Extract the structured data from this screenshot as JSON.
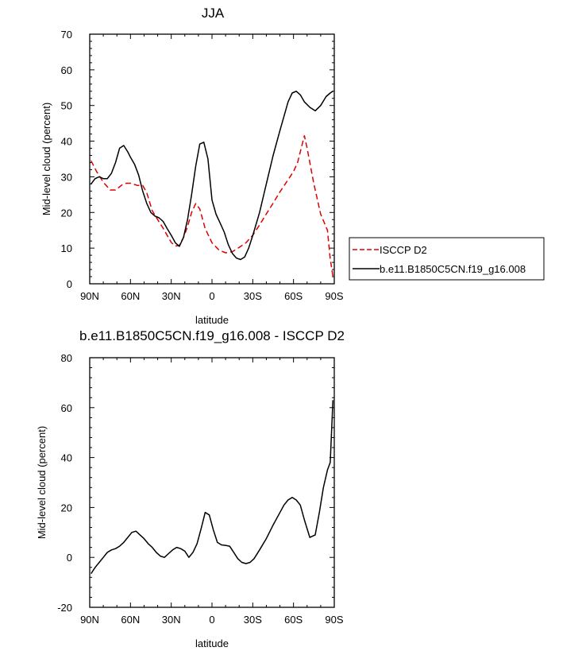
{
  "chart_data": [
    {
      "type": "line",
      "title": "JJA",
      "xlabel": "latitude",
      "ylabel": "Mid-level cloud (percent)",
      "xlim": [
        90,
        -90
      ],
      "ylim": [
        0,
        70
      ],
      "x_ticks": [
        90,
        60,
        30,
        0,
        -30,
        -60,
        -90
      ],
      "x_tick_labels": [
        "90N",
        "60N",
        "30N",
        "0",
        "30S",
        "60S",
        "90S"
      ],
      "y_ticks": [
        0,
        10,
        20,
        30,
        40,
        50,
        60,
        70
      ],
      "y_tick_labels": [
        "0",
        "10",
        "20",
        "30",
        "40",
        "50",
        "60",
        "70"
      ],
      "legend_position": "right",
      "series": [
        {
          "name": "ISCCP D2",
          "color": "#dd0000",
          "style": "dashed",
          "x": [
            89,
            85,
            80,
            75,
            71,
            66,
            63,
            60,
            55,
            51,
            48,
            44,
            40,
            36,
            33,
            30,
            27,
            24,
            21,
            18,
            15,
            12,
            9,
            5,
            0,
            -5,
            -10,
            -15,
            -20,
            -25,
            -30,
            -35,
            -40,
            -45,
            -50,
            -55,
            -60,
            -63,
            -66,
            -68,
            -70,
            -75,
            -80,
            -85,
            -87,
            -89
          ],
          "y": [
            34.5,
            31.5,
            28.5,
            26.3,
            26.3,
            27.8,
            28.2,
            28.2,
            27.6,
            27.6,
            25.5,
            20.5,
            18,
            15.6,
            13.6,
            11.6,
            10.6,
            10.8,
            13,
            16,
            20,
            22.5,
            21,
            15.5,
            11.5,
            9.5,
            8.7,
            9,
            10.2,
            11.5,
            13.6,
            16.5,
            19.6,
            22.6,
            25.8,
            28.6,
            31.5,
            34,
            38.5,
            41.5,
            38,
            28,
            19.5,
            15,
            7,
            2
          ]
        },
        {
          "name": "b.e11.B1850C5CN.f19_g16.008",
          "color": "#000000",
          "style": "solid",
          "x": [
            89,
            86,
            83,
            80,
            77,
            74,
            71,
            68,
            65,
            62,
            60,
            57,
            54,
            51,
            48,
            45,
            42,
            39,
            36,
            33,
            30,
            27,
            24,
            21,
            18,
            15,
            12,
            9,
            6,
            3,
            0,
            -3,
            -6,
            -9,
            -12,
            -15,
            -18,
            -21,
            -24,
            -27,
            -30,
            -35,
            -40,
            -45,
            -50,
            -53,
            -56,
            -59,
            -62,
            -65,
            -68,
            -72,
            -76,
            -80,
            -84,
            -87,
            -89
          ],
          "y": [
            28,
            29.5,
            30,
            29.5,
            29.5,
            31,
            34,
            38,
            38.8,
            37,
            35.5,
            33.5,
            30.5,
            26,
            22.5,
            20,
            19,
            18.5,
            17.5,
            15.5,
            13.6,
            11.5,
            10.5,
            13,
            18,
            25,
            33,
            39.2,
            39.7,
            35,
            23.5,
            19.5,
            17,
            14.5,
            11,
            8.5,
            7.2,
            6.8,
            7.5,
            10,
            13.5,
            20,
            28,
            36,
            43,
            47,
            51,
            53.5,
            54,
            53,
            51,
            49.5,
            48.5,
            50,
            52.5,
            53.5,
            54
          ]
        }
      ]
    },
    {
      "type": "line",
      "title": "b.e11.B1850C5CN.f19_g16.008 - ISCCP D2",
      "xlabel": "latitude",
      "ylabel": "Mid-level cloud (percent)",
      "xlim": [
        90,
        -90
      ],
      "ylim": [
        -20,
        80
      ],
      "x_ticks": [
        90,
        60,
        30,
        0,
        -30,
        -60,
        -90
      ],
      "x_tick_labels": [
        "90N",
        "60N",
        "30N",
        "0",
        "30S",
        "60S",
        "90S"
      ],
      "y_ticks": [
        -20,
        0,
        20,
        40,
        60,
        80
      ],
      "y_tick_labels": [
        "-20",
        "0",
        "20",
        "40",
        "60",
        "80"
      ],
      "series": [
        {
          "color": "#000000",
          "style": "solid",
          "x": [
            89,
            86,
            83,
            80,
            77,
            74,
            71,
            68,
            65,
            62,
            59,
            56,
            53,
            50,
            47,
            44,
            41,
            38,
            35,
            32,
            29,
            26,
            23,
            20,
            17,
            14,
            11,
            8,
            5,
            2,
            -1,
            -4,
            -7,
            -10,
            -13,
            -16,
            -19,
            -22,
            -25,
            -28,
            -31,
            -35,
            -40,
            -45,
            -50,
            -53,
            -56,
            -59,
            -62,
            -65,
            -68,
            -72,
            -76,
            -79,
            -82,
            -85,
            -87,
            -89
          ],
          "y": [
            -6.5,
            -4,
            -2,
            0,
            2,
            3,
            3.5,
            4.5,
            6,
            8,
            10,
            10.5,
            9,
            7.5,
            5.5,
            4,
            2,
            0.5,
            0,
            1.5,
            3,
            4,
            3.5,
            2.5,
            0,
            2,
            5.5,
            11.5,
            18,
            17,
            11,
            6,
            5,
            4.8,
            4.5,
            2,
            -0.5,
            -2,
            -2.5,
            -2,
            -0.5,
            3,
            7.5,
            13,
            18,
            21,
            23,
            24,
            23,
            21,
            15,
            8,
            9,
            18,
            28,
            35,
            38,
            63
          ]
        }
      ]
    }
  ]
}
